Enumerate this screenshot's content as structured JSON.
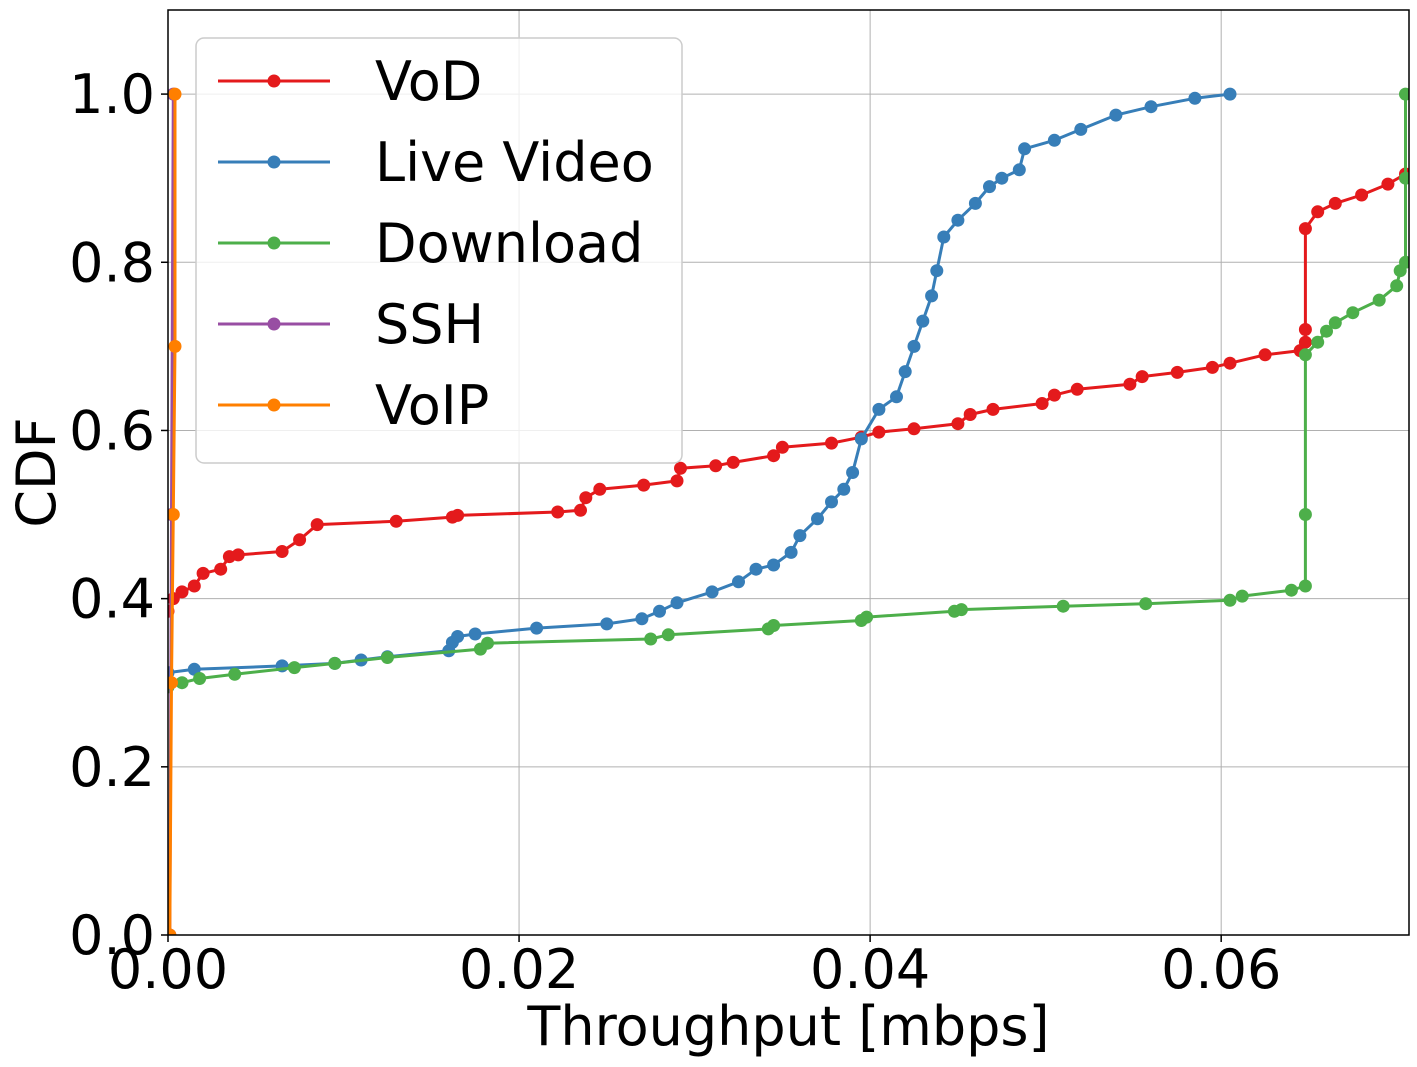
{
  "chart_data": {
    "type": "line",
    "xlabel": "Throughput [mbps]",
    "ylabel": "CDF",
    "xlim": [
      0,
      0.0707
    ],
    "ylim": [
      0,
      1.1
    ],
    "xticks": [
      0,
      0.02,
      0.04,
      0.06
    ],
    "xtick_labels": [
      "0.00",
      "0.02",
      "0.04",
      "0.06"
    ],
    "yticks": [
      0,
      0.2,
      0.4,
      0.6,
      0.8,
      1.0
    ],
    "ytick_labels": [
      "0.0",
      "0.2",
      "0.4",
      "0.6",
      "0.8",
      "1.0"
    ],
    "grid": true,
    "legend_position": "top-left",
    "series": [
      {
        "name": "VoD",
        "color": "#e41a1c",
        "points": [
          [
            0,
            0.385
          ],
          [
            0.0003,
            0.4
          ],
          [
            0.0008,
            0.408
          ],
          [
            0.0015,
            0.415
          ],
          [
            0.002,
            0.43
          ],
          [
            0.003,
            0.435
          ],
          [
            0.0035,
            0.45
          ],
          [
            0.004,
            0.452
          ],
          [
            0.0065,
            0.456
          ],
          [
            0.0075,
            0.47
          ],
          [
            0.0085,
            0.488
          ],
          [
            0.013,
            0.492
          ],
          [
            0.0162,
            0.497
          ],
          [
            0.0165,
            0.499
          ],
          [
            0.0222,
            0.503
          ],
          [
            0.0235,
            0.505
          ],
          [
            0.0238,
            0.52
          ],
          [
            0.0246,
            0.53
          ],
          [
            0.0271,
            0.535
          ],
          [
            0.029,
            0.54
          ],
          [
            0.0292,
            0.555
          ],
          [
            0.0312,
            0.558
          ],
          [
            0.0322,
            0.562
          ],
          [
            0.0345,
            0.57
          ],
          [
            0.035,
            0.58
          ],
          [
            0.0378,
            0.585
          ],
          [
            0.0395,
            0.592
          ],
          [
            0.0405,
            0.598
          ],
          [
            0.0425,
            0.602
          ],
          [
            0.045,
            0.608
          ],
          [
            0.0457,
            0.619
          ],
          [
            0.047,
            0.625
          ],
          [
            0.0498,
            0.632
          ],
          [
            0.0505,
            0.642
          ],
          [
            0.0518,
            0.649
          ],
          [
            0.0548,
            0.655
          ],
          [
            0.0555,
            0.664
          ],
          [
            0.0575,
            0.669
          ],
          [
            0.0595,
            0.675
          ],
          [
            0.0605,
            0.68
          ],
          [
            0.0625,
            0.69
          ],
          [
            0.0645,
            0.695
          ],
          [
            0.0648,
            0.705
          ],
          [
            0.0648,
            0.72
          ],
          [
            0.0648,
            0.84
          ],
          [
            0.0655,
            0.86
          ],
          [
            0.0665,
            0.87
          ],
          [
            0.068,
            0.88
          ],
          [
            0.0695,
            0.893
          ],
          [
            0.0705,
            0.905
          ]
        ]
      },
      {
        "name": "Live Video",
        "color": "#377eb8",
        "points": [
          [
            0,
            0.312
          ],
          [
            0.0015,
            0.316
          ],
          [
            0.0065,
            0.32
          ],
          [
            0.0095,
            0.323
          ],
          [
            0.011,
            0.327
          ],
          [
            0.0125,
            0.331
          ],
          [
            0.016,
            0.338
          ],
          [
            0.0162,
            0.348
          ],
          [
            0.0165,
            0.355
          ],
          [
            0.0175,
            0.358
          ],
          [
            0.021,
            0.365
          ],
          [
            0.025,
            0.37
          ],
          [
            0.027,
            0.376
          ],
          [
            0.028,
            0.385
          ],
          [
            0.029,
            0.395
          ],
          [
            0.031,
            0.408
          ],
          [
            0.0325,
            0.42
          ],
          [
            0.0335,
            0.435
          ],
          [
            0.0345,
            0.44
          ],
          [
            0.0355,
            0.455
          ],
          [
            0.036,
            0.475
          ],
          [
            0.037,
            0.495
          ],
          [
            0.0378,
            0.515
          ],
          [
            0.0385,
            0.53
          ],
          [
            0.039,
            0.55
          ],
          [
            0.0395,
            0.59
          ],
          [
            0.0405,
            0.625
          ],
          [
            0.0415,
            0.64
          ],
          [
            0.042,
            0.67
          ],
          [
            0.0425,
            0.7
          ],
          [
            0.043,
            0.73
          ],
          [
            0.0435,
            0.76
          ],
          [
            0.0438,
            0.79
          ],
          [
            0.0442,
            0.83
          ],
          [
            0.045,
            0.85
          ],
          [
            0.046,
            0.87
          ],
          [
            0.0468,
            0.89
          ],
          [
            0.0475,
            0.9
          ],
          [
            0.0485,
            0.91
          ],
          [
            0.0488,
            0.935
          ],
          [
            0.0505,
            0.945
          ],
          [
            0.052,
            0.958
          ],
          [
            0.054,
            0.975
          ],
          [
            0.056,
            0.985
          ],
          [
            0.0585,
            0.995
          ],
          [
            0.0605,
            1.0
          ]
        ]
      },
      {
        "name": "Download",
        "color": "#4daf4a",
        "points": [
          [
            0,
            0.295
          ],
          [
            0.0008,
            0.3
          ],
          [
            0.0018,
            0.305
          ],
          [
            0.0038,
            0.31
          ],
          [
            0.0072,
            0.318
          ],
          [
            0.0095,
            0.323
          ],
          [
            0.0125,
            0.33
          ],
          [
            0.0178,
            0.34
          ],
          [
            0.0182,
            0.347
          ],
          [
            0.0275,
            0.352
          ],
          [
            0.0285,
            0.357
          ],
          [
            0.0342,
            0.364
          ],
          [
            0.0345,
            0.368
          ],
          [
            0.0395,
            0.374
          ],
          [
            0.0398,
            0.378
          ],
          [
            0.0448,
            0.385
          ],
          [
            0.0452,
            0.387
          ],
          [
            0.051,
            0.391
          ],
          [
            0.0557,
            0.394
          ],
          [
            0.0605,
            0.398
          ],
          [
            0.0612,
            0.403
          ],
          [
            0.064,
            0.41
          ],
          [
            0.0648,
            0.415
          ],
          [
            0.0648,
            0.5
          ],
          [
            0.0648,
            0.69
          ],
          [
            0.0655,
            0.705
          ],
          [
            0.066,
            0.718
          ],
          [
            0.0665,
            0.728
          ],
          [
            0.0675,
            0.74
          ],
          [
            0.069,
            0.755
          ],
          [
            0.07,
            0.772
          ],
          [
            0.0702,
            0.79
          ],
          [
            0.0705,
            0.8
          ],
          [
            0.0705,
            0.9
          ],
          [
            0.0705,
            1.0
          ]
        ]
      },
      {
        "name": "SSH",
        "color": "#984ea3",
        "points": [
          [
            0.0001,
            0.0
          ],
          [
            0.0002,
            0.5
          ],
          [
            0.0003,
            1.0
          ]
        ]
      },
      {
        "name": "VoIP",
        "color": "#ff7f00",
        "points": [
          [
            0.0001,
            0.0
          ],
          [
            0.0002,
            0.3
          ],
          [
            0.0003,
            0.5
          ],
          [
            0.0004,
            0.7
          ],
          [
            0.0004,
            1.0
          ]
        ]
      }
    ]
  }
}
